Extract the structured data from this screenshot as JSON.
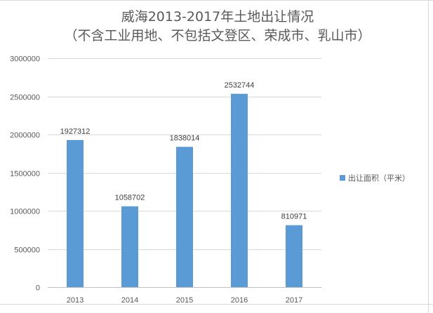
{
  "chart_data": {
    "type": "bar",
    "title": "威海2013-2017年土地出让情况",
    "subtitle": "（不含工业用地、不包括文登区、荣成市、乳山市）",
    "categories": [
      "2013",
      "2014",
      "2015",
      "2016",
      "2017"
    ],
    "series": [
      {
        "name": "出让面积（平米）",
        "values": [
          1927312,
          1058702,
          1838014,
          2532744,
          810971
        ],
        "color": "#5b9bd5"
      }
    ],
    "data_labels": [
      "1927312",
      "1058702",
      "1838014",
      "2532744",
      "810971"
    ],
    "y_ticks": [
      "0",
      "500000",
      "1000000",
      "1500000",
      "2000000",
      "2500000",
      "3000000"
    ],
    "ylim": [
      0,
      3000000
    ],
    "grid": true,
    "legend_position": "right",
    "colors": {
      "gridline": "#d9d9d9",
      "axis": "#bfbfbf",
      "text": "#595959"
    }
  }
}
